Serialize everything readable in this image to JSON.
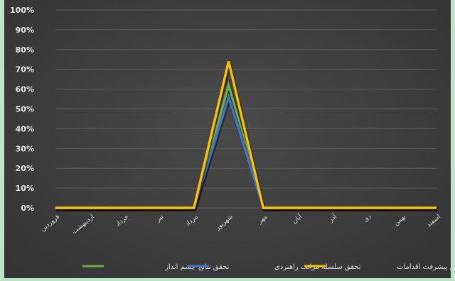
{
  "chart_data": {
    "type": "line",
    "title": "",
    "xlabel": "",
    "ylabel": "",
    "ylim": [
      0,
      100
    ],
    "yticks": [
      "0%",
      "10%",
      "20%",
      "30%",
      "40%",
      "50%",
      "60%",
      "70%",
      "80%",
      "90%",
      "100%"
    ],
    "categories": [
      "فروردین",
      "اردیبهشت",
      "خرداد",
      "تیر",
      "مرداد",
      "شهریور",
      "مهر",
      "آبان",
      "آذر",
      "دی",
      "بهمن",
      "اسفند"
    ],
    "series": [
      {
        "name": "تحقق نتایج چشم انداز",
        "color": "#70ad47",
        "values": [
          0,
          0,
          0,
          0,
          0,
          62,
          0,
          0,
          0,
          0,
          0,
          0
        ]
      },
      {
        "name": "تحقق سلسله مراتب راهبردی",
        "color": "#4472c4",
        "values": [
          0,
          0,
          0,
          0,
          0,
          56,
          0,
          0,
          0,
          0,
          0,
          0
        ]
      },
      {
        "name": "تحقق پیشرفت اقدامات",
        "color": "#ffc000",
        "values": [
          0,
          0,
          0,
          0,
          0,
          74,
          0,
          0,
          0,
          0,
          0,
          0
        ]
      }
    ],
    "grid": true,
    "legend": "bottom"
  }
}
